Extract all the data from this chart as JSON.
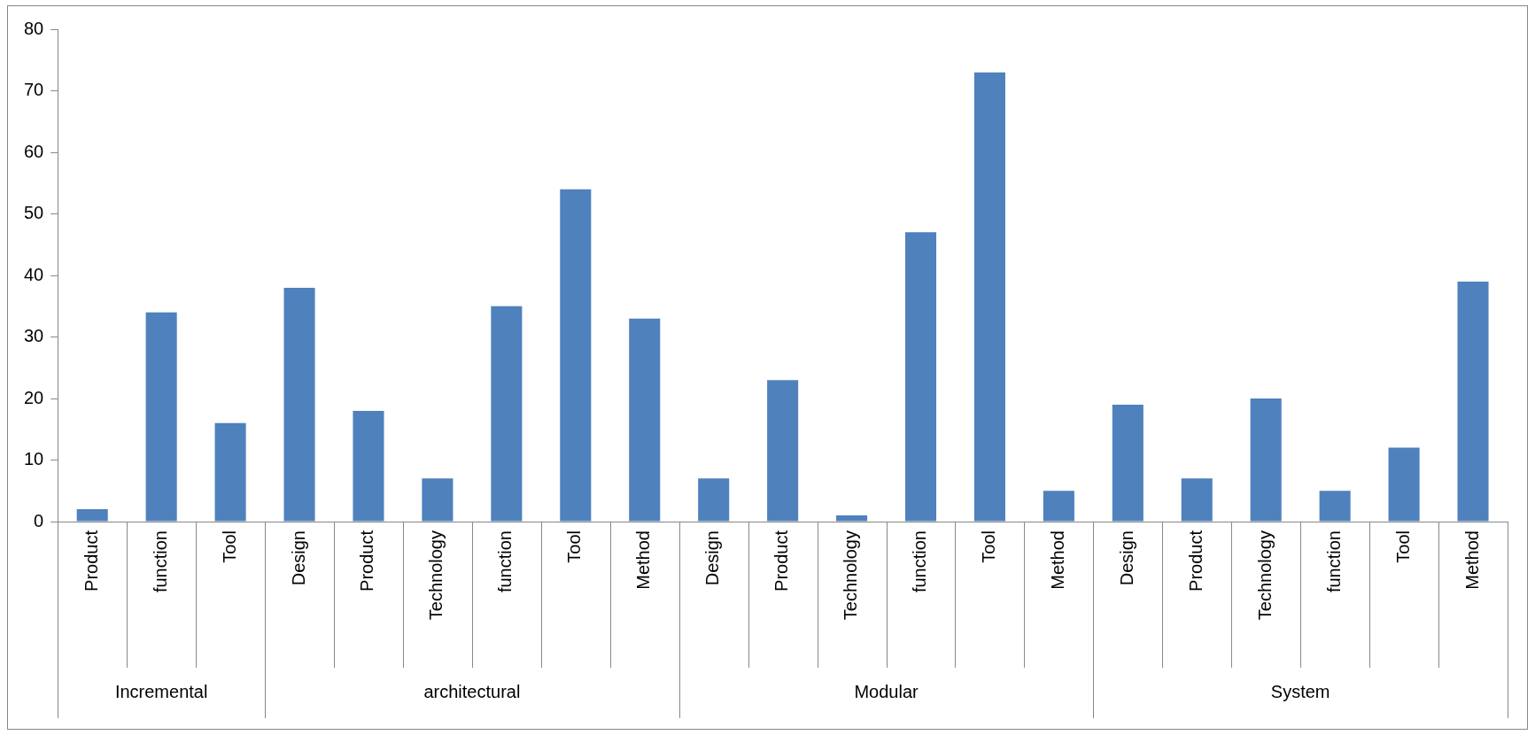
{
  "chart_data": {
    "type": "bar",
    "categories": [
      "Product",
      "function",
      "Tool",
      "Design",
      "Product",
      "Technology",
      "function",
      "Tool",
      "Method",
      "Design",
      "Product",
      "Technology",
      "function",
      "Tool",
      "Method",
      "Design",
      "Product",
      "Technology",
      "function",
      "Tool",
      "Method"
    ],
    "values": [
      2,
      34,
      16,
      38,
      18,
      7,
      35,
      54,
      33,
      7,
      23,
      1,
      47,
      73,
      5,
      19,
      7,
      20,
      5,
      12,
      39
    ],
    "color": "#4f81bd",
    "ylim": [
      0,
      80
    ],
    "yticks": [
      0,
      10,
      20,
      30,
      40,
      50,
      60,
      70,
      80
    ],
    "grid": false,
    "legend": false,
    "annotations": [
      "Incremental",
      "architectural",
      "Modular",
      "System"
    ]
  }
}
